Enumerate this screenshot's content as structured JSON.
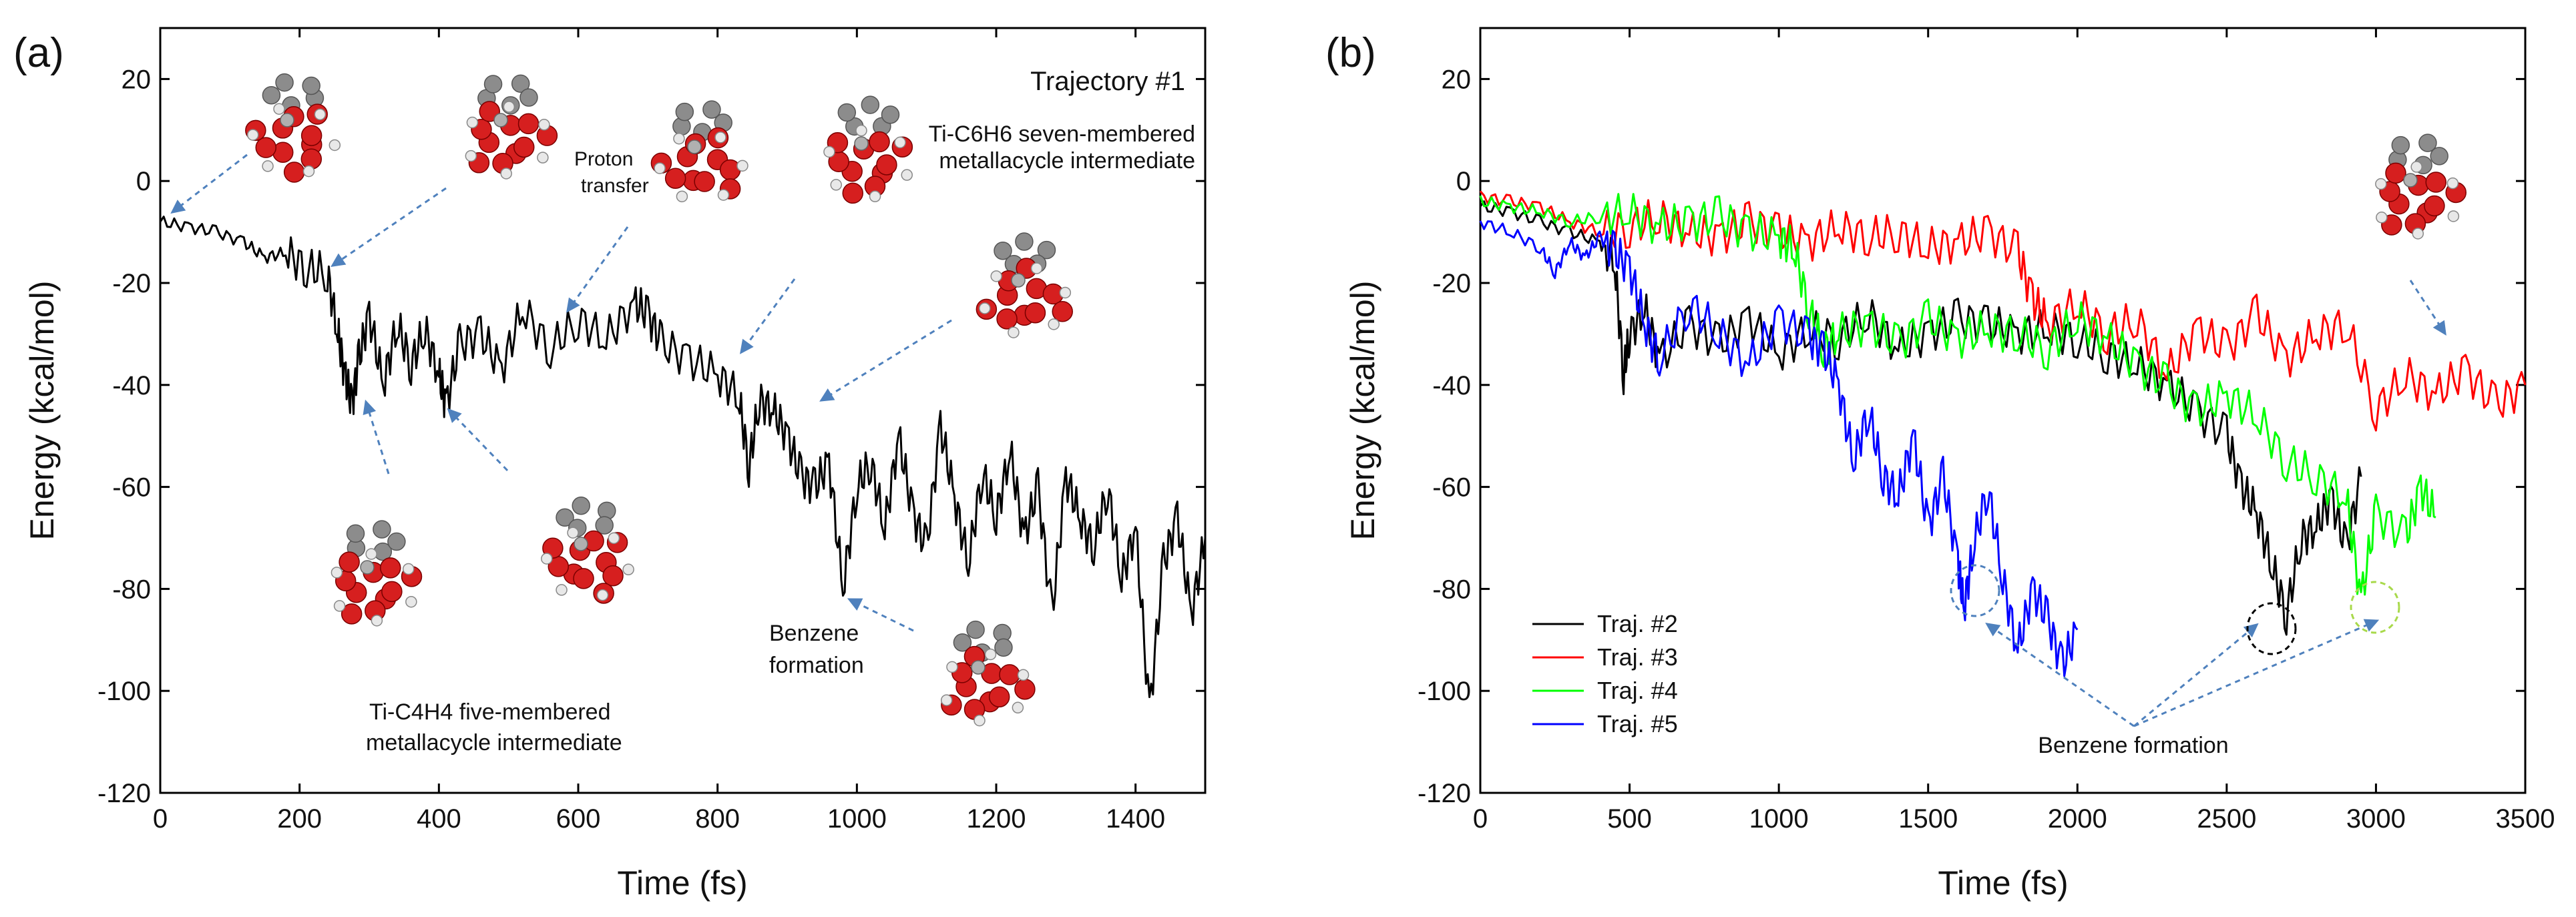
{
  "chart_data": [
    {
      "type": "line",
      "panel_label": "(a)",
      "title": "Trajectory #1",
      "xlabel": "Time (fs)",
      "ylabel": "Energy (kcal/mol)",
      "xlim": [
        0,
        1500
      ],
      "ylim": [
        -120,
        30
      ],
      "xticks": [
        0,
        200,
        400,
        600,
        800,
        1000,
        1200,
        1400
      ],
      "yticks": [
        20,
        0,
        -20,
        -40,
        -60,
        -80,
        -100,
        -120
      ],
      "series": [
        {
          "name": "Trajectory #1",
          "color": "#000000",
          "x": [
            0,
            40,
            80,
            120,
            150,
            180,
            210,
            240,
            255,
            265,
            275,
            285,
            300,
            320,
            340,
            360,
            380,
            400,
            410,
            430,
            460,
            490,
            520,
            560,
            600,
            640,
            680,
            700,
            720,
            760,
            800,
            830,
            845,
            860,
            880,
            900,
            920,
            940,
            960,
            980,
            1000,
            1020,
            1040,
            1060,
            1080,
            1100,
            1120,
            1140,
            1160,
            1180,
            1200,
            1220,
            1240,
            1260,
            1280,
            1300,
            1320,
            1340,
            1360,
            1380,
            1400,
            1420,
            1440,
            1460,
            1480,
            1500
          ],
          "y": [
            -8,
            -9,
            -10,
            -12,
            -15,
            -14,
            -17,
            -18,
            -30,
            -38,
            -44,
            -35,
            -26,
            -40,
            -28,
            -36,
            -29,
            -38,
            -44,
            -32,
            -30,
            -37,
            -25,
            -33,
            -27,
            -31,
            -24,
            -26,
            -32,
            -35,
            -38,
            -42,
            -56,
            -43,
            -45,
            -50,
            -58,
            -60,
            -55,
            -80,
            -60,
            -55,
            -68,
            -50,
            -65,
            -72,
            -48,
            -62,
            -75,
            -57,
            -66,
            -53,
            -70,
            -60,
            -85,
            -58,
            -66,
            -72,
            -60,
            -78,
            -68,
            -104,
            -75,
            -66,
            -85,
            -70
          ]
        }
      ],
      "annotations": [
        "Proton",
        "transfer",
        "Ti-C6H6 seven-membered",
        "metallacycle intermediate",
        "Benzene",
        "formation",
        "Ti-C4H4 five-membered",
        "metallacycle intermediate"
      ]
    },
    {
      "type": "line",
      "panel_label": "(b)",
      "xlabel": "Time (fs)",
      "ylabel": "Energy (kcal/mol)",
      "xlim": [
        0,
        3500
      ],
      "ylim": [
        -120,
        30
      ],
      "xticks": [
        0,
        500,
        1000,
        1500,
        2000,
        2500,
        3000,
        3500
      ],
      "yticks": [
        20,
        0,
        -20,
        -40,
        -60,
        -80,
        -100,
        -120
      ],
      "legend_position": "bottom-left",
      "annotation": "Benzene formation",
      "series": [
        {
          "name": "Traj. #2",
          "color": "#000000",
          "x": [
            0,
            100,
            200,
            300,
            400,
            450,
            480,
            500,
            550,
            600,
            700,
            800,
            900,
            1000,
            1100,
            1200,
            1300,
            1400,
            1500,
            1600,
            1700,
            1800,
            1900,
            2000,
            2100,
            2200,
            2300,
            2400,
            2500,
            2550,
            2600,
            2650,
            2700,
            2750,
            2800,
            2850,
            2900,
            2950
          ],
          "y": [
            -5,
            -6,
            -8,
            -10,
            -12,
            -16,
            -38,
            -30,
            -25,
            -35,
            -28,
            -32,
            -27,
            -34,
            -29,
            -31,
            -26,
            -33,
            -30,
            -27,
            -28,
            -30,
            -29,
            -31,
            -34,
            -36,
            -40,
            -45,
            -50,
            -60,
            -65,
            -75,
            -85,
            -70,
            -68,
            -62,
            -72,
            -58
          ]
        },
        {
          "name": "Traj. #3",
          "color": "#ff0000",
          "x": [
            0,
            100,
            200,
            300,
            400,
            500,
            600,
            700,
            800,
            900,
            1000,
            1100,
            1200,
            1300,
            1400,
            1500,
            1600,
            1700,
            1800,
            1850,
            1900,
            2000,
            2100,
            2200,
            2300,
            2400,
            2500,
            2600,
            2700,
            2800,
            2900,
            3000,
            3100,
            3200,
            3300,
            3400,
            3500
          ],
          "y": [
            -3,
            -4,
            -5,
            -8,
            -10,
            -9,
            -7,
            -10,
            -11,
            -8,
            -10,
            -12,
            -9,
            -11,
            -10,
            -13,
            -12,
            -10,
            -14,
            -23,
            -28,
            -24,
            -30,
            -27,
            -38,
            -29,
            -33,
            -26,
            -35,
            -30,
            -28,
            -45,
            -38,
            -42,
            -37,
            -44,
            -40
          ]
        },
        {
          "name": "Traj. #4",
          "color": "#00ff00",
          "x": [
            0,
            100,
            200,
            300,
            400,
            500,
            600,
            700,
            800,
            900,
            1000,
            1050,
            1100,
            1150,
            1200,
            1300,
            1400,
            1500,
            1600,
            1700,
            1800,
            1900,
            2000,
            2100,
            2200,
            2300,
            2400,
            2500,
            2600,
            2700,
            2800,
            2900,
            2950,
            3000,
            3100,
            3150,
            3200
          ],
          "y": [
            -4,
            -5,
            -6,
            -8,
            -7,
            -6,
            -9,
            -8,
            -7,
            -10,
            -11,
            -13,
            -25,
            -33,
            -30,
            -28,
            -32,
            -27,
            -31,
            -29,
            -30,
            -33,
            -27,
            -31,
            -36,
            -40,
            -45,
            -42,
            -46,
            -55,
            -58,
            -62,
            -82,
            -65,
            -70,
            -60,
            -66
          ]
        },
        {
          "name": "Traj. #5",
          "color": "#0000ff",
          "x": [
            0,
            100,
            200,
            250,
            300,
            350,
            400,
            450,
            500,
            550,
            600,
            700,
            800,
            900,
            1000,
            1100,
            1150,
            1200,
            1250,
            1300,
            1350,
            1400,
            1450,
            1500,
            1550,
            1600,
            1620,
            1650,
            1700,
            1750,
            1800,
            1850,
            1900,
            1950,
            2000
          ],
          "y": [
            -8,
            -10,
            -13,
            -18,
            -12,
            -15,
            -11,
            -14,
            -17,
            -28,
            -35,
            -24,
            -30,
            -36,
            -27,
            -31,
            -33,
            -40,
            -55,
            -45,
            -58,
            -62,
            -50,
            -68,
            -58,
            -75,
            -84,
            -72,
            -60,
            -78,
            -92,
            -80,
            -86,
            -95,
            -88
          ]
        }
      ]
    }
  ]
}
